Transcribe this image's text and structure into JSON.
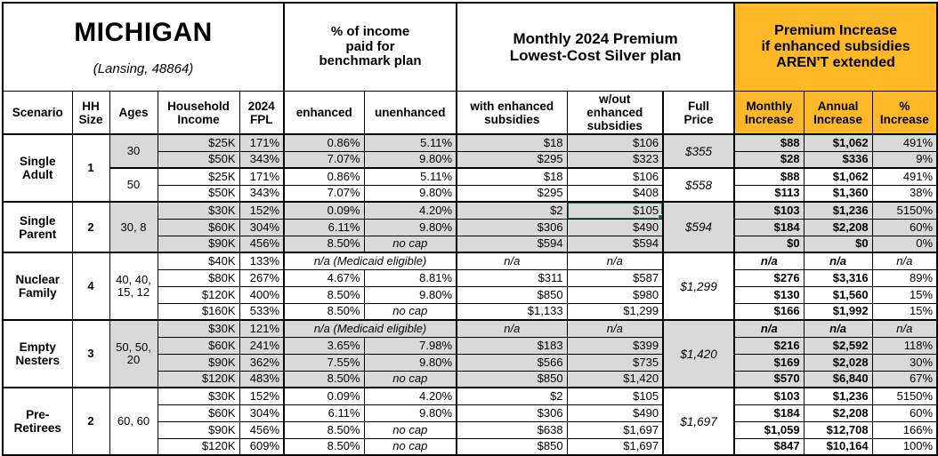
{
  "title": {
    "state": "MICHIGAN",
    "location": "(Lansing, 48864)"
  },
  "headers": {
    "benchmark_group": "% of income\npaid for\nbenchmark plan",
    "premium_group": "Monthly 2024 Premium\nLowest-Cost Silver plan",
    "increase_group": "Premium Increase\nif enhanced subsidies\nAREN'T extended",
    "columns": [
      "Scenario",
      "HH\nSize",
      "Ages",
      "Household\nIncome",
      "2024\nFPL",
      "enhanced",
      "unenhanced",
      "with enhanced\nsubsidies",
      "w/out enhanced\nsubsidies",
      "Full\nPrice",
      "Monthly\nIncrease",
      "Annual\nIncrease",
      "%\nIncrease"
    ]
  },
  "colors": {
    "header_orange": "#FCB826",
    "row_gray": "#D9D9D9",
    "selection_green": "#217346",
    "border_black": "#000000"
  },
  "groups": [
    {
      "scenario": "Single\nAdult",
      "hh_size": "1",
      "subgroups": [
        {
          "ages": "30",
          "shaded": true,
          "full_price": "$355",
          "rows": [
            {
              "income": "$25K",
              "fpl": "171%",
              "enhanced": "0.86%",
              "unenhanced": "5.11%",
              "with_sub": "$18",
              "wout_sub": "$106",
              "monthly": "$88",
              "annual": "$1,062",
              "pct": "491%"
            },
            {
              "income": "$50K",
              "fpl": "343%",
              "enhanced": "7.07%",
              "unenhanced": "9.80%",
              "with_sub": "$295",
              "wout_sub": "$323",
              "monthly": "$28",
              "annual": "$336",
              "pct": "9%"
            }
          ]
        },
        {
          "ages": "50",
          "shaded": false,
          "full_price": "$558",
          "rows": [
            {
              "income": "$25K",
              "fpl": "171%",
              "enhanced": "0.86%",
              "unenhanced": "5.11%",
              "with_sub": "$18",
              "wout_sub": "$106",
              "monthly": "$88",
              "annual": "$1,062",
              "pct": "491%"
            },
            {
              "income": "$50K",
              "fpl": "343%",
              "enhanced": "7.07%",
              "unenhanced": "9.80%",
              "with_sub": "$295",
              "wout_sub": "$408",
              "monthly": "$113",
              "annual": "$1,360",
              "pct": "38%"
            }
          ]
        }
      ]
    },
    {
      "scenario": "Single\nParent",
      "hh_size": "2",
      "subgroups": [
        {
          "ages": "30, 8",
          "shaded": true,
          "full_price": "$594",
          "rows": [
            {
              "income": "$30K",
              "fpl": "152%",
              "enhanced": "0.09%",
              "unenhanced": "4.20%",
              "with_sub": "$2",
              "wout_sub": "$105",
              "selected": true,
              "monthly": "$103",
              "annual": "$1,236",
              "pct": "5150%"
            },
            {
              "income": "$60K",
              "fpl": "304%",
              "enhanced": "6.11%",
              "unenhanced": "9.80%",
              "with_sub": "$306",
              "wout_sub": "$490",
              "monthly": "$184",
              "annual": "$2,208",
              "pct": "60%"
            },
            {
              "income": "$90K",
              "fpl": "456%",
              "enhanced": "8.50%",
              "unenhanced": "no cap",
              "nocap": true,
              "with_sub": "$594",
              "wout_sub": "$594",
              "monthly": "$0",
              "annual": "$0",
              "pct": "0%"
            }
          ]
        }
      ]
    },
    {
      "scenario": "Nuclear\nFamily",
      "hh_size": "4",
      "subgroups": [
        {
          "ages": "40, 40,\n15, 12",
          "shaded": false,
          "full_price": "$1,299",
          "rows": [
            {
              "income": "$40K",
              "fpl": "133%",
              "medicaid": true,
              "note": "n/a (Medicaid eligible)",
              "with_sub": "n/a",
              "wout_sub": "n/a",
              "monthly": "n/a",
              "annual": "n/a",
              "pct": "n/a"
            },
            {
              "income": "$80K",
              "fpl": "267%",
              "enhanced": "4.67%",
              "unenhanced": "8.81%",
              "with_sub": "$311",
              "wout_sub": "$587",
              "monthly": "$276",
              "annual": "$3,316",
              "pct": "89%"
            },
            {
              "income": "$120K",
              "fpl": "400%",
              "enhanced": "8.50%",
              "unenhanced": "9.80%",
              "with_sub": "$850",
              "wout_sub": "$980",
              "monthly": "$130",
              "annual": "$1,560",
              "pct": "15%"
            },
            {
              "income": "$160K",
              "fpl": "533%",
              "enhanced": "8.50%",
              "unenhanced": "no cap",
              "nocap": true,
              "with_sub": "$1,133",
              "wout_sub": "$1,299",
              "monthly": "$166",
              "annual": "$1,992",
              "pct": "15%"
            }
          ]
        }
      ]
    },
    {
      "scenario": "Empty\nNesters",
      "hh_size": "3",
      "subgroups": [
        {
          "ages": "50, 50,\n20",
          "shaded": true,
          "full_price": "$1,420",
          "rows": [
            {
              "income": "$30K",
              "fpl": "121%",
              "medicaid": true,
              "note": "n/a (Medicaid eligible)",
              "with_sub": "n/a",
              "wout_sub": "n/a",
              "monthly": "n/a",
              "annual": "n/a",
              "pct": "n/a"
            },
            {
              "income": "$60K",
              "fpl": "241%",
              "enhanced": "3.65%",
              "unenhanced": "7.98%",
              "with_sub": "$183",
              "wout_sub": "$399",
              "monthly": "$216",
              "annual": "$2,592",
              "pct": "118%"
            },
            {
              "income": "$90K",
              "fpl": "362%",
              "enhanced": "7.55%",
              "unenhanced": "9.80%",
              "with_sub": "$566",
              "wout_sub": "$735",
              "monthly": "$169",
              "annual": "$2,028",
              "pct": "30%"
            },
            {
              "income": "$120K",
              "fpl": "483%",
              "enhanced": "8.50%",
              "unenhanced": "no cap",
              "nocap": true,
              "with_sub": "$850",
              "wout_sub": "$1,420",
              "monthly": "$570",
              "annual": "$6,840",
              "pct": "67%"
            }
          ]
        }
      ]
    },
    {
      "scenario": "Pre-\nRetirees",
      "hh_size": "2",
      "subgroups": [
        {
          "ages": "60, 60",
          "shaded": false,
          "full_price": "$1,697",
          "rows": [
            {
              "income": "$30K",
              "fpl": "152%",
              "enhanced": "0.09%",
              "unenhanced": "4.20%",
              "with_sub": "$2",
              "wout_sub": "$105",
              "monthly": "$103",
              "annual": "$1,236",
              "pct": "5150%"
            },
            {
              "income": "$60K",
              "fpl": "304%",
              "enhanced": "6.11%",
              "unenhanced": "9.80%",
              "with_sub": "$306",
              "wout_sub": "$490",
              "monthly": "$184",
              "annual": "$2,208",
              "pct": "60%"
            },
            {
              "income": "$90K",
              "fpl": "456%",
              "enhanced": "8.50%",
              "unenhanced": "no cap",
              "nocap": true,
              "with_sub": "$638",
              "wout_sub": "$1,697",
              "monthly": "$1,059",
              "annual": "$12,708",
              "pct": "166%"
            },
            {
              "income": "$120K",
              "fpl": "609%",
              "enhanced": "8.50%",
              "unenhanced": "no cap",
              "nocap": true,
              "with_sub": "$850",
              "wout_sub": "$1,697",
              "monthly": "$847",
              "annual": "$10,164",
              "pct": "100%"
            }
          ]
        }
      ]
    }
  ]
}
